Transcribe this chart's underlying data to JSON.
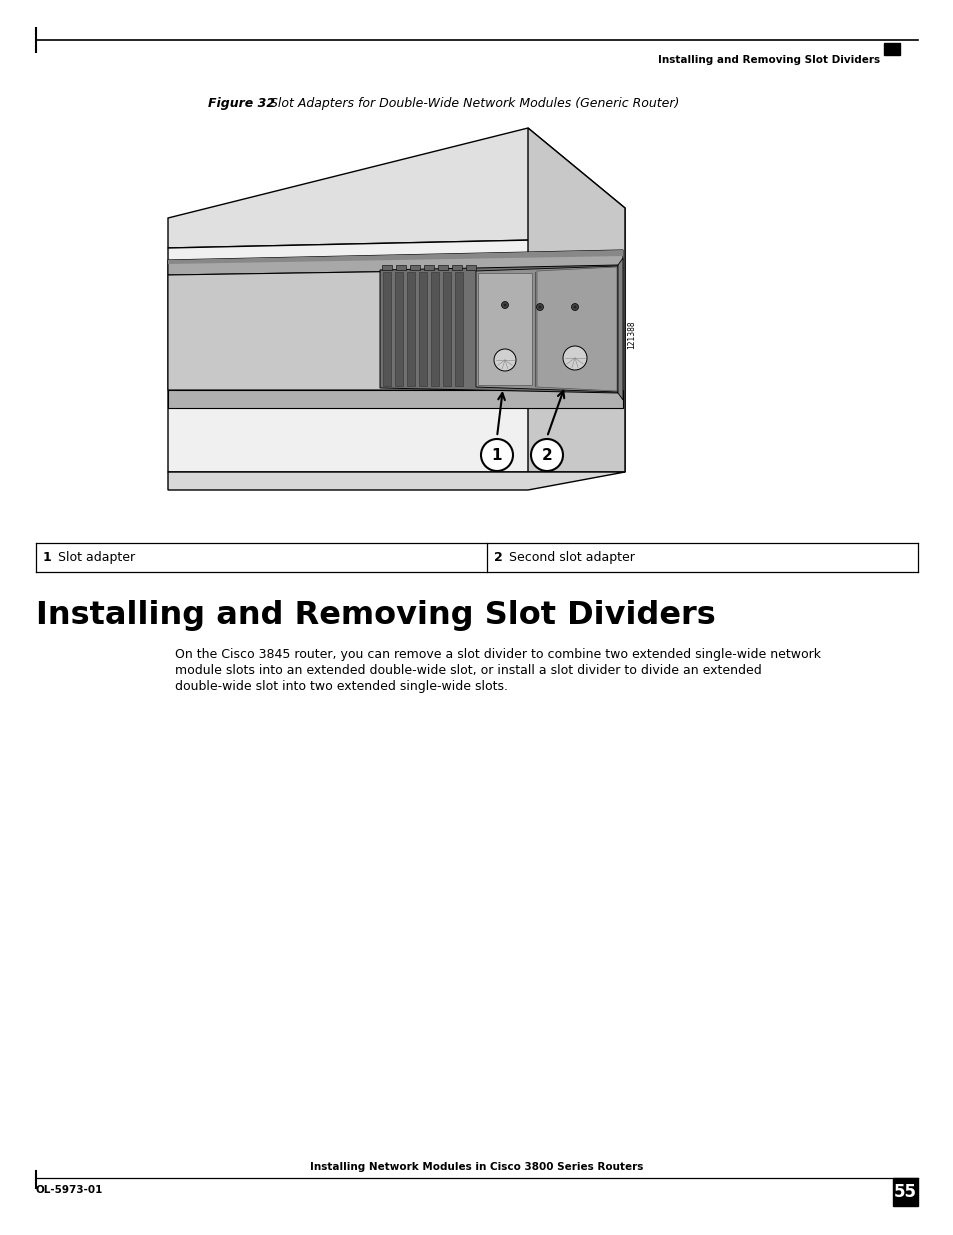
{
  "page_title_right": "Installing and Removing Slot Dividers",
  "figure_label": "Figure 32",
  "figure_title": "    Slot Adapters for Double-Wide Network Modules (Generic Router)",
  "section_title": "Installing and Removing Slot Dividers",
  "body_text": "On the Cisco 3845 router, you can remove a slot divider to combine two extended single-wide network\nmodule slots into an extended double-wide slot, or install a slot divider to divide an extended\ndouble-wide slot into two extended single-wide slots.",
  "label1_num": "1",
  "label1_text": "Slot adapter",
  "label2_num": "2",
  "label2_text": "Second slot adapter",
  "footer_left": "OL-5973-01",
  "footer_center": "Installing Network Modules in Cisco 3800 Series Routers",
  "footer_page": "55",
  "watermark": "121388",
  "bg_color": "#ffffff"
}
